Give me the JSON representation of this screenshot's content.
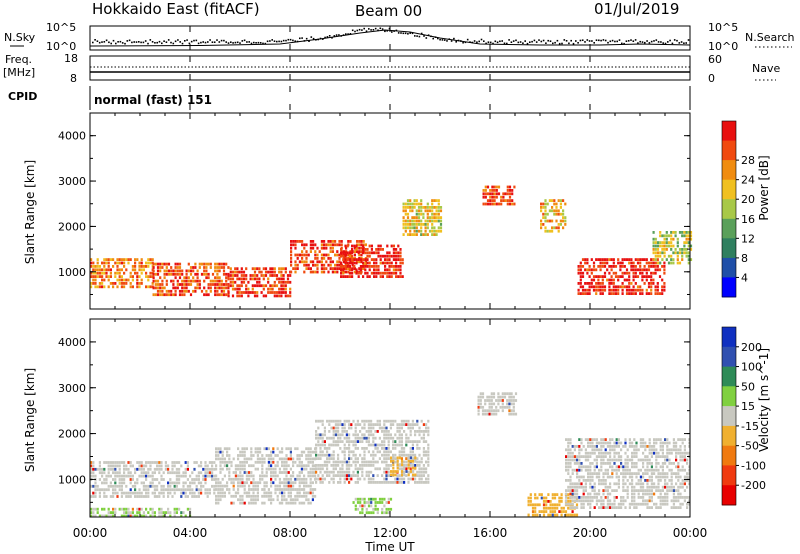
{
  "header": {
    "station": "Hokkaido East (fitACF)",
    "beam": "Beam 00",
    "date": "01/Jul/2019"
  },
  "top_panels": {
    "nsky_label": "N.Sky",
    "nsky_ticks": [
      "10^5",
      "10^0"
    ],
    "nsearch_label": "N.Search",
    "nsearch_ticks": [
      "10^5",
      "10^0"
    ],
    "freq_label_1": "Freq.",
    "freq_label_2": "[MHz]",
    "freq_ticks": [
      "18",
      "8"
    ],
    "nave_label": "Nave",
    "nave_ticks": [
      "60",
      "0"
    ],
    "cpid_label": "CPID",
    "cpid_value": "normal (fast) 151"
  },
  "x_axis": {
    "label": "Time UT",
    "ticks": [
      "00:00",
      "04:00",
      "08:00",
      "12:00",
      "16:00",
      "20:00",
      "00:00"
    ]
  },
  "colors": {
    "power_scale": [
      "#0000ff",
      "#1f4fa8",
      "#2f7f5f",
      "#5aa05a",
      "#a8c848",
      "#f0c020",
      "#f08c10",
      "#f04a10",
      "#e81010"
    ],
    "velocity_scale": [
      "#1030c0",
      "#3050b0",
      "#2e8b57",
      "#80d040",
      "#c8c8c0",
      "#f0b030",
      "#f07a10",
      "#f03a10",
      "#e80000"
    ]
  },
  "chart_data": [
    {
      "type": "heatmap",
      "title": "",
      "xlabel": "",
      "ylabel": "Slant Range [km]",
      "xlim": [
        0,
        24
      ],
      "ylim": [
        180,
        4500
      ],
      "y_ticks": [
        "1000",
        "2000",
        "3000",
        "4000"
      ],
      "colorbar": {
        "label": "Power [dB]",
        "ticks": [
          "4",
          "8",
          "12",
          "16",
          "20",
          "24",
          "28"
        ],
        "range": [
          0,
          30
        ]
      },
      "regions": [
        {
          "t_start": 0.0,
          "t_end": 2.5,
          "r_min": 700,
          "r_max": 1300,
          "value": 22
        },
        {
          "t_start": 2.5,
          "t_end": 5.5,
          "r_min": 500,
          "r_max": 1200,
          "value": 25
        },
        {
          "t_start": 5.5,
          "t_end": 8.0,
          "r_min": 450,
          "r_max": 1100,
          "value": 27
        },
        {
          "t_start": 8.0,
          "t_end": 11.0,
          "r_min": 1000,
          "r_max": 1700,
          "value": 26
        },
        {
          "t_start": 10.0,
          "t_end": 12.5,
          "r_min": 900,
          "r_max": 1600,
          "value": 28
        },
        {
          "t_start": 12.5,
          "t_end": 14.0,
          "r_min": 1800,
          "r_max": 2600,
          "value": 18
        },
        {
          "t_start": 15.7,
          "t_end": 17.0,
          "r_min": 2500,
          "r_max": 2900,
          "value": 26
        },
        {
          "t_start": 18.0,
          "t_end": 19.0,
          "r_min": 1900,
          "r_max": 2600,
          "value": 20
        },
        {
          "t_start": 19.5,
          "t_end": 23.0,
          "r_min": 500,
          "r_max": 1300,
          "value": 28
        },
        {
          "t_start": 22.5,
          "t_end": 24.0,
          "r_min": 1200,
          "r_max": 1900,
          "value": 16
        }
      ]
    },
    {
      "type": "heatmap",
      "title": "",
      "xlabel": "Time UT",
      "ylabel": "Slant Range [km]",
      "xlim": [
        0,
        24
      ],
      "ylim": [
        180,
        4500
      ],
      "y_ticks": [
        "1000",
        "2000",
        "3000",
        "4000"
      ],
      "colorbar": {
        "label": "Velocity [m s^-1]",
        "ticks": [
          "200",
          "100",
          "50",
          "15",
          "-15",
          "-50",
          "-100",
          "-200"
        ],
        "range": [
          -250,
          250
        ]
      },
      "regions": [
        {
          "t_start": 0.0,
          "t_end": 5.0,
          "r_min": 600,
          "r_max": 1400,
          "value": 0
        },
        {
          "t_start": 5.0,
          "t_end": 9.0,
          "r_min": 500,
          "r_max": 1700,
          "value": -5
        },
        {
          "t_start": 9.0,
          "t_end": 13.5,
          "r_min": 900,
          "r_max": 2300,
          "value": 0
        },
        {
          "t_start": 10.5,
          "t_end": 12.0,
          "r_min": 300,
          "r_max": 600,
          "value": 40
        },
        {
          "t_start": 12.0,
          "t_end": 13.0,
          "r_min": 1100,
          "r_max": 1500,
          "value": -40
        },
        {
          "t_start": 15.5,
          "t_end": 17.0,
          "r_min": 2400,
          "r_max": 2900,
          "value": 0
        },
        {
          "t_start": 17.5,
          "t_end": 19.5,
          "r_min": 250,
          "r_max": 700,
          "value": -60
        },
        {
          "t_start": 19.0,
          "t_end": 24.0,
          "r_min": 400,
          "r_max": 1900,
          "value": 0
        },
        {
          "t_start": 0.0,
          "t_end": 4.0,
          "r_min": 180,
          "r_max": 380,
          "value": 30
        }
      ]
    }
  ]
}
